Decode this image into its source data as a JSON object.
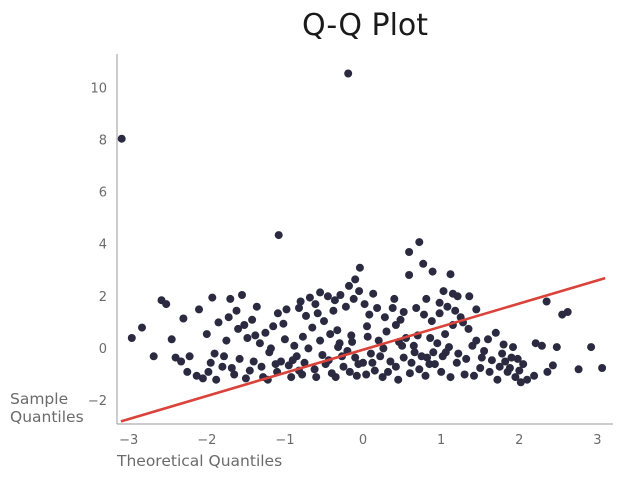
{
  "chart_data": {
    "type": "scatter",
    "title": "Q-Q Plot",
    "xlabel": "Theoretical Quantiles",
    "ylabel": "Sample Quantiles",
    "xlim": [
      -3.15,
      3.2
    ],
    "ylim": [
      -2.9,
      11.3
    ],
    "xticks": [
      -3,
      -2,
      -1,
      0,
      1,
      2,
      3
    ],
    "yticks": [
      -2,
      0,
      2,
      4,
      6,
      8,
      10
    ],
    "xtick_labels": [
      "−3",
      "−2",
      "−1",
      "0",
      "1",
      "2",
      "3"
    ],
    "ytick_labels": [
      "−2",
      "0",
      "2",
      "4",
      "6",
      "8",
      "10"
    ],
    "grid": false,
    "legend": "none",
    "point_color": "#2b2a40",
    "line_color": "#d9433a",
    "reference_line": {
      "x": [
        -3.1,
        3.1
      ],
      "y": [
        -2.8,
        2.7
      ]
    },
    "series": [
      {
        "points": [
          [
            -3.09,
            8.05
          ],
          [
            -0.19,
            10.55
          ],
          [
            -1.08,
            4.35
          ],
          [
            0.72,
            4.08
          ],
          [
            0.59,
            3.7
          ],
          [
            0.77,
            3.25
          ],
          [
            -0.04,
            3.1
          ],
          [
            0.89,
            2.95
          ],
          [
            1.12,
            2.85
          ],
          [
            0.59,
            2.82
          ],
          [
            -0.1,
            2.65
          ],
          [
            2.35,
            1.8
          ],
          [
            -2.58,
            1.85
          ],
          [
            -2.52,
            1.7
          ],
          [
            -2.3,
            1.15
          ],
          [
            -2.83,
            0.8
          ],
          [
            -2.96,
            0.4
          ],
          [
            -2.45,
            0.35
          ],
          [
            -2.68,
            -0.3
          ],
          [
            -2.4,
            -0.35
          ],
          [
            -2.33,
            -0.5
          ],
          [
            -2.22,
            -0.3
          ],
          [
            -2.1,
            1.5
          ],
          [
            -1.93,
            1.95
          ],
          [
            -2.25,
            -0.9
          ],
          [
            -2.13,
            -1.05
          ],
          [
            -1.7,
            1.9
          ],
          [
            -1.55,
            2.05
          ],
          [
            -1.36,
            1.6
          ],
          [
            -1.09,
            1.35
          ],
          [
            2.55,
            1.3
          ],
          [
            2.62,
            1.4
          ],
          [
            2.92,
            0.05
          ],
          [
            2.76,
            -0.8
          ],
          [
            3.06,
            -0.75
          ],
          [
            2.48,
            0.05
          ],
          [
            2.29,
            0.1
          ],
          [
            2.21,
            0.2
          ],
          [
            2.43,
            -0.65
          ],
          [
            2.36,
            -0.9
          ],
          [
            2.19,
            -1.05
          ],
          [
            1.21,
            2.0
          ],
          [
            1.15,
            2.1
          ],
          [
            1.36,
            2.0
          ],
          [
            1.45,
            1.5
          ],
          [
            1.03,
            2.2
          ],
          [
            0.98,
            1.75
          ],
          [
            0.81,
            1.9
          ],
          [
            -0.55,
            2.15
          ],
          [
            -0.45,
            2.0
          ],
          [
            -0.29,
            2.05
          ],
          [
            -0.61,
            1.7
          ],
          [
            -0.82,
            1.55
          ],
          [
            -0.73,
            1.25
          ],
          [
            -0.36,
            1.85
          ],
          [
            -0.18,
            2.4
          ],
          [
            -0.05,
            2.2
          ],
          [
            0.13,
            2.1
          ],
          [
            0.4,
            1.9
          ],
          [
            0.52,
            1.4
          ],
          [
            -1.6,
            0.75
          ],
          [
            -1.48,
            0.4
          ],
          [
            -1.32,
            0.2
          ],
          [
            -1.2,
            -0.15
          ],
          [
            -1.05,
            -0.5
          ],
          [
            -0.95,
            -0.65
          ],
          [
            -0.88,
            0.1
          ],
          [
            -0.77,
            0.45
          ],
          [
            -0.65,
            0.8
          ],
          [
            -0.5,
            1.05
          ],
          [
            -0.42,
            0.55
          ],
          [
            -0.3,
            0.2
          ],
          [
            -0.2,
            -0.1
          ],
          [
            -0.1,
            -0.35
          ],
          [
            0.0,
            -0.55
          ],
          [
            0.1,
            -0.2
          ],
          [
            0.2,
            0.3
          ],
          [
            0.3,
            0.65
          ],
          [
            0.42,
            0.9
          ],
          [
            0.55,
            0.4
          ],
          [
            0.65,
            0.1
          ],
          [
            0.75,
            -0.3
          ],
          [
            0.85,
            -0.6
          ],
          [
            0.95,
            0.2
          ],
          [
            1.05,
            0.55
          ],
          [
            1.15,
            0.9
          ],
          [
            1.25,
            1.2
          ],
          [
            1.35,
            0.75
          ],
          [
            1.45,
            0.3
          ],
          [
            1.55,
            -0.1
          ],
          [
            1.65,
            -0.45
          ],
          [
            1.75,
            -0.7
          ],
          [
            1.85,
            -0.9
          ],
          [
            1.95,
            -1.1
          ],
          [
            2.05,
            -0.6
          ],
          [
            1.7,
            0.6
          ],
          [
            1.8,
            0.15
          ],
          [
            1.9,
            -0.35
          ],
          [
            2.0,
            -0.85
          ],
          [
            2.1,
            -1.2
          ],
          [
            -1.9,
            -0.2
          ],
          [
            -1.8,
            -0.7
          ],
          [
            -1.75,
            0.3
          ],
          [
            -1.65,
            -1.0
          ],
          [
            -1.58,
            -0.4
          ],
          [
            -1.45,
            -0.85
          ],
          [
            -1.38,
            0.5
          ],
          [
            -1.28,
            -1.1
          ],
          [
            -1.18,
            0.0
          ],
          [
            -1.1,
            -0.9
          ],
          [
            -1.0,
            0.35
          ],
          [
            -0.92,
            -1.1
          ],
          [
            -0.85,
            -0.3
          ],
          [
            -0.78,
            -1.0
          ],
          [
            -0.7,
            0.0
          ],
          [
            -0.62,
            -0.8
          ],
          [
            -0.55,
            0.3
          ],
          [
            -0.48,
            -0.6
          ],
          [
            -0.4,
            -0.95
          ],
          [
            -0.33,
            0.7
          ],
          [
            -0.25,
            -0.7
          ],
          [
            -0.15,
            0.5
          ],
          [
            -0.08,
            -1.05
          ],
          [
            0.05,
            0.85
          ],
          [
            0.15,
            -0.85
          ],
          [
            0.25,
            -1.1
          ],
          [
            0.35,
            -0.5
          ],
          [
            0.45,
            -1.2
          ],
          [
            0.5,
            0.1
          ],
          [
            0.6,
            -0.95
          ],
          [
            0.7,
            0.5
          ],
          [
            0.8,
            -1.05
          ],
          [
            0.9,
            -0.15
          ],
          [
            1.0,
            -0.9
          ],
          [
            1.1,
            0.05
          ],
          [
            1.2,
            -0.55
          ],
          [
            1.3,
            -1.0
          ],
          [
            1.4,
            0.1
          ],
          [
            1.5,
            -0.75
          ],
          [
            1.6,
            0.35
          ],
          [
            1.72,
            -1.2
          ],
          [
            1.82,
            -0.5
          ],
          [
            1.92,
            0.05
          ],
          [
            2.02,
            -1.3
          ],
          [
            -2.0,
            0.55
          ],
          [
            -1.95,
            -0.55
          ],
          [
            -1.85,
            1.0
          ],
          [
            -1.72,
            1.2
          ],
          [
            -1.62,
            1.45
          ],
          [
            -1.52,
            0.9
          ],
          [
            -1.42,
            1.1
          ],
          [
            -1.25,
            0.6
          ],
          [
            -1.15,
            0.85
          ],
          [
            -1.02,
            0.95
          ],
          [
            -0.98,
            1.5
          ],
          [
            -0.8,
            1.8
          ],
          [
            -0.68,
            1.95
          ],
          [
            -0.58,
            1.35
          ],
          [
            -0.38,
            1.45
          ],
          [
            -0.22,
            1.6
          ],
          [
            -0.12,
            1.9
          ],
          [
            0.02,
            1.7
          ],
          [
            0.08,
            1.3
          ],
          [
            0.18,
            1.55
          ],
          [
            0.28,
            1.2
          ],
          [
            0.38,
            1.55
          ],
          [
            0.48,
            1.1
          ],
          [
            0.68,
            1.55
          ],
          [
            0.78,
            1.3
          ],
          [
            0.88,
            1.05
          ],
          [
            0.98,
            1.35
          ],
          [
            1.08,
            1.6
          ],
          [
            1.18,
            1.45
          ],
          [
            1.28,
            1.0
          ],
          [
            -2.05,
            -1.15
          ],
          [
            -1.98,
            -0.9
          ],
          [
            -1.88,
            -1.2
          ],
          [
            -1.78,
            -0.3
          ],
          [
            -1.68,
            -0.75
          ],
          [
            -1.5,
            -1.15
          ],
          [
            -1.4,
            -0.5
          ],
          [
            -1.3,
            -0.7
          ],
          [
            -1.22,
            -1.2
          ],
          [
            -1.12,
            -0.6
          ],
          [
            -0.9,
            -0.45
          ],
          [
            -0.82,
            -0.85
          ],
          [
            -0.75,
            -0.55
          ],
          [
            -0.6,
            -1.1
          ],
          [
            -0.52,
            -0.25
          ],
          [
            -0.44,
            -0.45
          ],
          [
            -0.35,
            -1.1
          ],
          [
            -0.27,
            -0.3
          ],
          [
            -0.17,
            -0.9
          ],
          [
            -0.06,
            -0.6
          ],
          [
            0.04,
            -1.0
          ],
          [
            0.12,
            -0.55
          ],
          [
            0.22,
            -0.3
          ],
          [
            0.32,
            -0.9
          ],
          [
            0.42,
            -0.7
          ],
          [
            0.52,
            -0.35
          ],
          [
            0.62,
            -0.55
          ],
          [
            0.72,
            -0.8
          ],
          [
            0.82,
            -0.35
          ],
          [
            0.92,
            -0.6
          ],
          [
            1.02,
            -0.3
          ],
          [
            1.12,
            -1.1
          ],
          [
            1.22,
            -0.2
          ],
          [
            1.32,
            -0.4
          ],
          [
            1.42,
            -1.05
          ],
          [
            1.52,
            -0.35
          ],
          [
            1.62,
            -0.9
          ],
          [
            1.78,
            -0.2
          ],
          [
            1.88,
            -0.75
          ],
          [
            1.98,
            -0.4
          ],
          [
            -0.32,
            0.05
          ],
          [
            -0.14,
            0.25
          ],
          [
            0.06,
            0.45
          ],
          [
            0.26,
            0.0
          ],
          [
            0.46,
            0.25
          ],
          [
            0.66,
            -0.15
          ],
          [
            0.86,
            0.4
          ],
          [
            1.06,
            -0.15
          ]
        ]
      }
    ]
  }
}
